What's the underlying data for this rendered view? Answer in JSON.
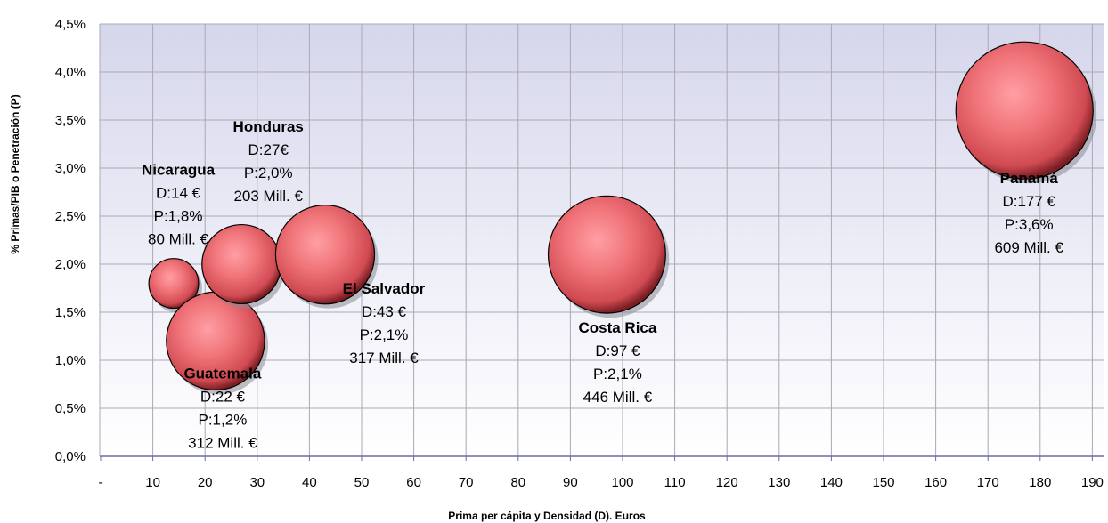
{
  "chart_data": {
    "type": "scatter",
    "subtype": "bubble",
    "title": "",
    "xlabel": "Prima per cápita y Densidad (D). Euros",
    "ylabel": "% Primas/PIB o Penetración (P)",
    "xlim": [
      0,
      195
    ],
    "ylim": [
      0,
      4.5
    ],
    "x_ticks": [
      "-",
      "10",
      "20",
      "30",
      "40",
      "50",
      "60",
      "70",
      "80",
      "90",
      "100",
      "110",
      "120",
      "130",
      "140",
      "150",
      "160",
      "170",
      "180",
      "190"
    ],
    "y_ticks": [
      "0,0%",
      "0,5%",
      "1,0%",
      "1,5%",
      "2,0%",
      "2,5%",
      "3,0%",
      "3,5%",
      "4,0%",
      "4,5%"
    ],
    "grid": true,
    "bubble_color": "#e86a6f",
    "series": [
      {
        "values": [
          {
            "name": "Nicaragua",
            "x": 14,
            "y": 1.8,
            "size": 80,
            "lines": [
              "D:14 €",
              "P:1,8%",
              "80 Mill. €"
            ]
          },
          {
            "name": "Guatemala",
            "x": 22,
            "y": 1.2,
            "size": 312,
            "lines": [
              "D:22 €",
              "P:1,2%",
              "312 Mill. €"
            ]
          },
          {
            "name": "Honduras",
            "x": 27,
            "y": 2.0,
            "size": 203,
            "lines": [
              "D:27€",
              "P:2,0%",
              "203 Mill. €"
            ]
          },
          {
            "name": "El Salvador",
            "x": 43,
            "y": 2.1,
            "size": 317,
            "lines": [
              "D:43 €",
              "P:2,1%",
              "317 Mill. €"
            ]
          },
          {
            "name": "Costa Rica",
            "x": 97,
            "y": 2.1,
            "size": 446,
            "lines": [
              "D:97 €",
              "P:2,1%",
              "446 Mill. €"
            ]
          },
          {
            "name": "Panamá",
            "x": 177,
            "y": 3.6,
            "size": 609,
            "lines": [
              "D:177 €",
              "P:3,6%",
              "609 Mill. €"
            ]
          }
        ]
      }
    ]
  }
}
